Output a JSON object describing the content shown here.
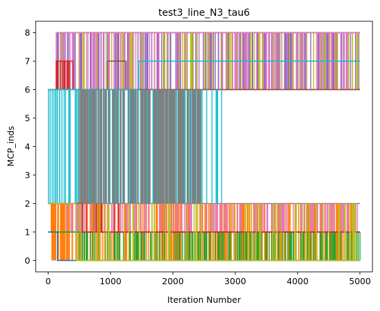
{
  "chart_data": {
    "type": "line",
    "title": "test3_line_N3_tau6",
    "xlabel": "Iteration Number",
    "ylabel": "MCP_inds",
    "xlim": [
      -200,
      5200
    ],
    "ylim": [
      -0.4,
      8.4
    ],
    "x_ticks": [
      0,
      1000,
      2000,
      3000,
      4000,
      5000
    ],
    "y_ticks": [
      0,
      1,
      2,
      3,
      4,
      5,
      6,
      7,
      8
    ],
    "grid": false,
    "legend": "none",
    "colors": {
      "blue": "#1f77b4",
      "orange": "#ff7f0e",
      "green": "#2ca02c",
      "red": "#d62728",
      "purple": "#9467bd",
      "brown": "#8c564b",
      "pink": "#e377c2",
      "gray": "#7f7f7f",
      "olive": "#bcbd22",
      "cyan": "#17becf"
    },
    "series": [
      {
        "color": "#9467bd",
        "x": [
          0,
          150,
          150,
          5000
        ],
        "y": [
          6,
          6,
          8,
          8
        ],
        "oscillate": {
          "levels": [
            6,
            8
          ],
          "start": 150,
          "end": 5000,
          "count": 220
        }
      },
      {
        "color": "#bcbd22",
        "x": [
          0,
          200,
          200,
          5000
        ],
        "y": [
          6,
          6,
          8,
          8
        ],
        "oscillate": {
          "levels": [
            6,
            8
          ],
          "start": 200,
          "end": 5000,
          "count": 90
        }
      },
      {
        "color": "#e377c2",
        "x": [
          0,
          130,
          130,
          5000
        ],
        "y": [
          6,
          6,
          8,
          8
        ],
        "oscillate": {
          "levels": [
            6,
            8
          ],
          "start": 130,
          "end": 5000,
          "count": 80
        }
      },
      {
        "color": "#d62728",
        "x": [
          0,
          130,
          130,
          400,
          400,
          5000
        ],
        "y": [
          6,
          6,
          7,
          7,
          6,
          6
        ],
        "oscillate": {
          "levels": [
            6,
            7
          ],
          "start": 130,
          "end": 400,
          "count": 12
        }
      },
      {
        "color": "#8c564b",
        "x": [
          0,
          950,
          950,
          1250,
          1250,
          5000
        ],
        "y": [
          6,
          6,
          7,
          7,
          6,
          6
        ]
      },
      {
        "color": "#17becf",
        "x": [
          0,
          1450,
          1450,
          5000
        ],
        "y": [
          6,
          6,
          7,
          7
        ],
        "oscillate": {
          "levels": [
            2,
            6
          ],
          "start": 0,
          "end": 2800,
          "count": 140
        }
      },
      {
        "color": "#7f7f7f",
        "x": [
          0,
          5000
        ],
        "y": [
          2,
          2
        ],
        "oscillate": {
          "levels": [
            2,
            6
          ],
          "start": 500,
          "end": 2450,
          "count": 180
        }
      },
      {
        "color": "#ff7f0e",
        "x": [
          0,
          50,
          50,
          5000
        ],
        "y": [
          2,
          2,
          1,
          1
        ],
        "oscillate": {
          "levels": [
            0,
            2
          ],
          "start": 50,
          "end": 5000,
          "count": 260
        }
      },
      {
        "color": "#e377c2",
        "x": [
          0,
          300,
          300,
          5000
        ],
        "y": [
          2,
          2,
          1,
          1
        ],
        "oscillate": {
          "levels": [
            1,
            2
          ],
          "start": 300,
          "end": 5000,
          "count": 160
        }
      },
      {
        "color": "#2ca02c",
        "x": [
          0,
          500,
          500,
          5000
        ],
        "y": [
          1,
          1,
          0,
          0
        ],
        "oscillate": {
          "levels": [
            0,
            1
          ],
          "start": 500,
          "end": 5000,
          "count": 200
        }
      },
      {
        "color": "#1f77b4",
        "x": [
          0,
          150,
          150,
          450,
          450,
          5000
        ],
        "y": [
          1,
          1,
          0,
          0,
          1,
          1
        ]
      },
      {
        "color": "#d62728",
        "x": [
          0,
          550,
          550,
          5000
        ],
        "y": [
          2,
          2,
          1,
          1
        ],
        "oscillate": {
          "levels": [
            1,
            2
          ],
          "start": 550,
          "end": 1200,
          "count": 10
        }
      },
      {
        "color": "#bcbd22",
        "x": [
          0,
          450,
          450,
          5000
        ],
        "y": [
          2,
          2,
          0,
          0
        ],
        "oscillate": {
          "levels": [
            0,
            2
          ],
          "start": 450,
          "end": 5000,
          "count": 60
        }
      }
    ]
  }
}
